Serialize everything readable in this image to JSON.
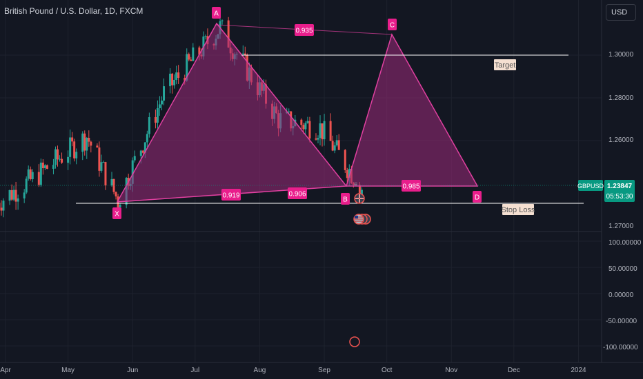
{
  "header": {
    "title": "British Pound / U.S. Dollar, 1D, FXCM",
    "currency": "USD"
  },
  "colors": {
    "background": "#131722",
    "up": "#26a69a",
    "down": "#ef5350",
    "pattern_fill": "#9c2a7a",
    "pattern_stroke": "#e040a0",
    "label_bg": "#e91e8c",
    "price_label_bg": "#089981"
  },
  "price_scale": {
    "ticks": [
      "1.30000",
      "1.28000",
      "1.26000",
      "1.27000"
    ],
    "current_symbol": "GBPUSD",
    "current_price": "1.23847",
    "countdown": "05:53:30"
  },
  "indicator_scale": {
    "ticks": [
      "100.00000",
      "50.00000",
      "0.00000",
      "-50.00000",
      "-100.00000"
    ]
  },
  "time_axis": {
    "ticks": [
      "Apr",
      "May",
      "Jun",
      "Jul",
      "Aug",
      "Sep",
      "Oct",
      "Nov",
      "Dec",
      "2024"
    ]
  },
  "pattern": {
    "points": [
      "X",
      "A",
      "B",
      "C",
      "D"
    ],
    "ratios": {
      "xb": "0.919",
      "ac": "0.935",
      "xd": "0.906",
      "bd": "0.985"
    }
  },
  "annotations": {
    "target": "Target",
    "stop_loss": "Stop Loss"
  },
  "chart_data": {
    "type": "candlestick",
    "title": "British Pound / U.S. Dollar, 1D, FXCM",
    "symbol": "GBPUSD",
    "last_price": 1.23847,
    "y_ticks": [
      1.26,
      1.28,
      1.3
    ],
    "x_ticks": [
      "Apr",
      "May",
      "Jun",
      "Jul",
      "Aug",
      "Sep",
      "Oct",
      "Nov",
      "Dec",
      "2024"
    ],
    "close_path": [
      {
        "date": "2023-03-28",
        "close": 1.231
      },
      {
        "date": "2023-04-14",
        "close": 1.242
      },
      {
        "date": "2023-05-10",
        "close": 1.262
      },
      {
        "date": "2023-05-25",
        "close": 1.232
      },
      {
        "date": "2023-06-16",
        "close": 1.282
      },
      {
        "date": "2023-07-13",
        "close": 1.313
      },
      {
        "date": "2023-08-10",
        "close": 1.27
      },
      {
        "date": "2023-08-30",
        "close": 1.266
      },
      {
        "date": "2023-09-19",
        "close": 1.238
      }
    ],
    "harmonic_points": [
      {
        "label": "X",
        "date": "2023-05-25",
        "price": 1.23
      },
      {
        "label": "A",
        "date": "2023-07-14",
        "price": 1.314
      },
      {
        "label": "B",
        "date": "2023-09-21",
        "price": 1.237
      },
      {
        "label": "C",
        "date": "2023-10-05",
        "price": 1.308
      },
      {
        "label": "D",
        "date": "2023-11-15",
        "price": 1.238
      }
    ],
    "target_price": 1.3,
    "stop_loss_price": 1.23
  }
}
